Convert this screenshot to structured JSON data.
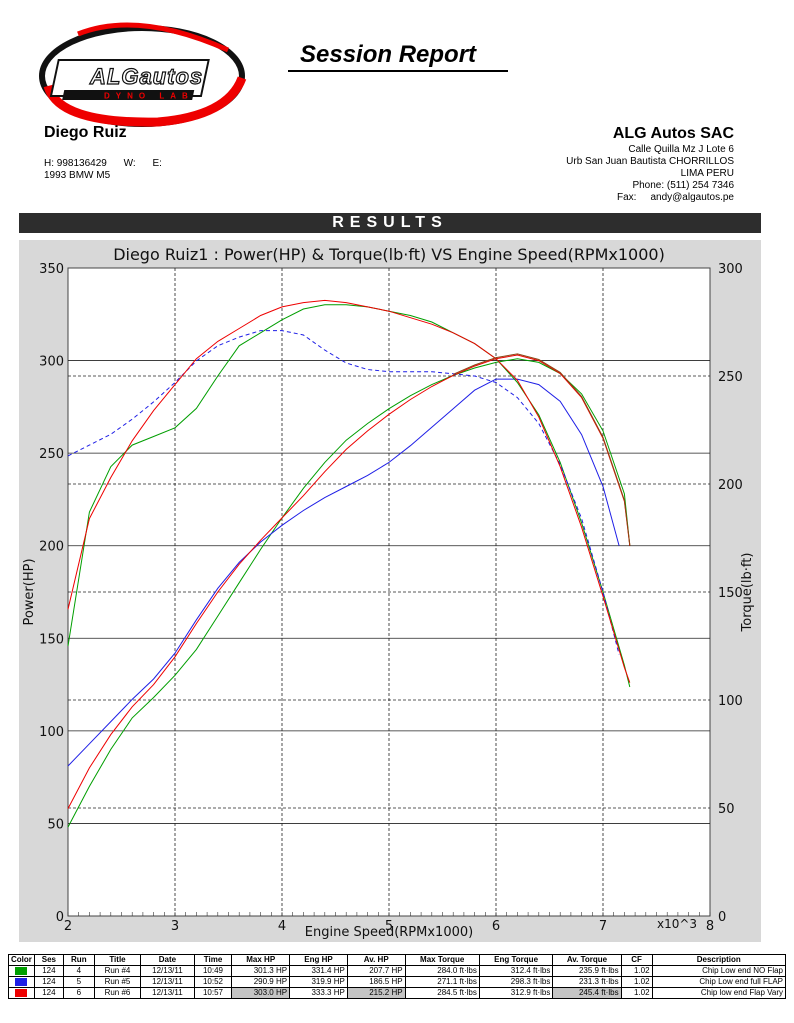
{
  "header": {
    "logo_text_main": "ALGautos",
    "logo_text_sub": "DYNO LAB",
    "report_title": "Session Report"
  },
  "customer": {
    "name": "Diego Ruiz",
    "phone_h": "H:  998136429",
    "phone_w": "W:",
    "phone_e": "E:",
    "car": "1993 BMW M5"
  },
  "company": {
    "name": "ALG Autos SAC",
    "address1": "Calle Quilla Mz J Lote 6",
    "address2": "Urb San Juan Bautista CHORRILLOS",
    "address3": "LIMA PERU",
    "phone": "Phone: (511) 254 7346",
    "fax_label": "Fax:",
    "fax_value": "andy@algautos.pe"
  },
  "results_label": "RESULTS",
  "colors": {
    "run4": "#009e00",
    "run5": "#1f1fe6",
    "run6": "#ee0000",
    "run6_torque_dark": "#8b4513"
  },
  "chart_data": {
    "type": "line",
    "title": "Diego Ruiz1 : Power(HP) & Torque(lb·ft) VS Engine Speed(RPMx1000)",
    "xlabel": "Engine Speed(RPMx1000)",
    "ylabel": "Power(HP)",
    "y2label": "Torque(lb·ft)",
    "x_multiplier_label": "x10^3",
    "xlim": [
      2,
      8
    ],
    "ylim": [
      0,
      350
    ],
    "y2lim": [
      0,
      300
    ],
    "x_ticks": [
      "2",
      "3",
      "4",
      "5",
      "6",
      "7",
      "8"
    ],
    "y_ticks": [
      "0",
      "50",
      "100",
      "150",
      "200",
      "250",
      "300",
      "350"
    ],
    "y2_ticks": [
      "0",
      "50",
      "100",
      "150",
      "200",
      "250",
      "300"
    ],
    "grid": true,
    "series": [
      {
        "name": "Run #4",
        "measure": "power",
        "axis": "left",
        "color": "#009e00",
        "dash": false,
        "x": [
          2.0,
          2.2,
          2.4,
          2.6,
          2.8,
          3.0,
          3.2,
          3.4,
          3.6,
          3.8,
          4.0,
          4.2,
          4.4,
          4.6,
          4.8,
          5.0,
          5.2,
          5.4,
          5.6,
          5.8,
          6.0,
          6.2,
          6.4,
          6.6,
          6.8,
          7.0,
          7.2,
          7.25
        ],
        "y": [
          48,
          70,
          90,
          107,
          118,
          130,
          144,
          162,
          180,
          198,
          215,
          231,
          245,
          257,
          266,
          274,
          281,
          287,
          292,
          296,
          299,
          301,
          299,
          293,
          282,
          262,
          228,
          200
        ]
      },
      {
        "name": "Run #5",
        "measure": "power",
        "axis": "left",
        "color": "#1f1fe6",
        "dash": false,
        "x": [
          2.0,
          2.2,
          2.4,
          2.6,
          2.8,
          3.0,
          3.2,
          3.4,
          3.6,
          3.8,
          4.0,
          4.2,
          4.4,
          4.6,
          4.8,
          5.0,
          5.2,
          5.4,
          5.6,
          5.8,
          6.0,
          6.2,
          6.4,
          6.6,
          6.8,
          7.0,
          7.15
        ],
        "y": [
          81,
          93,
          105,
          117,
          128,
          142,
          160,
          177,
          191,
          202,
          211,
          219,
          226,
          232,
          238,
          245,
          254,
          264,
          274,
          284,
          290,
          290,
          287,
          278,
          260,
          232,
          200
        ]
      },
      {
        "name": "Run #6",
        "measure": "power",
        "axis": "left",
        "color": "#ee0000",
        "dash": false,
        "x": [
          2.0,
          2.2,
          2.4,
          2.6,
          2.8,
          3.0,
          3.2,
          3.4,
          3.6,
          3.8,
          4.0,
          4.2,
          4.4,
          4.6,
          4.8,
          5.0,
          5.2,
          5.4,
          5.6,
          5.8,
          6.0,
          6.2,
          6.4,
          6.6,
          6.8,
          7.0,
          7.2,
          7.25
        ],
        "y": [
          58,
          80,
          98,
          113,
          125,
          140,
          158,
          175,
          190,
          203,
          215,
          227,
          240,
          252,
          262,
          271,
          279,
          286,
          292,
          297,
          301,
          303,
          300,
          293,
          280,
          258,
          224,
          200
        ]
      },
      {
        "name": "Run #4",
        "measure": "torque",
        "axis": "right",
        "color": "#009e00",
        "dash": false,
        "x": [
          2.0,
          2.2,
          2.4,
          2.6,
          2.8,
          3.0,
          3.2,
          3.4,
          3.6,
          3.8,
          4.0,
          4.2,
          4.4,
          4.6,
          4.8,
          5.0,
          5.2,
          5.4,
          5.6,
          5.8,
          6.0,
          6.2,
          6.4,
          6.6,
          6.8,
          7.0,
          7.2,
          7.25
        ],
        "y": [
          125,
          187,
          208,
          218,
          222,
          226,
          235,
          250,
          264,
          270,
          276,
          281,
          283,
          283,
          282,
          280,
          278,
          275,
          270,
          265,
          258,
          247,
          232,
          210,
          182,
          150,
          116,
          106
        ]
      },
      {
        "name": "Run #5",
        "measure": "torque",
        "axis": "right",
        "color": "#1f1fe6",
        "dash": true,
        "x": [
          2.0,
          2.2,
          2.4,
          2.6,
          2.8,
          3.0,
          3.2,
          3.4,
          3.6,
          3.8,
          4.0,
          4.2,
          4.4,
          4.6,
          4.8,
          5.0,
          5.2,
          5.4,
          5.6,
          5.8,
          6.0,
          6.2,
          6.4,
          6.6,
          6.8,
          7.0,
          7.15
        ],
        "y": [
          213,
          218,
          223,
          230,
          238,
          247,
          257,
          264,
          268,
          271,
          271,
          269,
          262,
          256,
          253,
          252,
          252,
          252,
          251,
          250,
          247,
          240,
          228,
          209,
          184,
          150,
          121
        ]
      },
      {
        "name": "Run #6",
        "measure": "torque",
        "axis": "right",
        "color": "#ee0000",
        "dash": false,
        "x": [
          2.0,
          2.2,
          2.4,
          2.6,
          2.8,
          3.0,
          3.2,
          3.4,
          3.6,
          3.8,
          4.0,
          4.2,
          4.4,
          4.6,
          4.8,
          5.0,
          5.2,
          5.4,
          5.6,
          5.8,
          6.0,
          6.2,
          6.4,
          6.6,
          6.8,
          7.0,
          7.2,
          7.25
        ],
        "y": [
          142,
          184,
          203,
          220,
          234,
          246,
          258,
          266,
          272,
          278,
          282,
          284,
          285,
          284,
          282,
          280,
          277,
          274,
          270,
          265,
          258,
          248,
          231,
          208,
          180,
          148,
          115,
          108
        ]
      }
    ]
  },
  "table": {
    "headers": [
      "Color",
      "Ses",
      "Run",
      "Title",
      "Date",
      "Time",
      "Max HP",
      "Eng HP",
      "Av. HP",
      "Max Torque",
      "Eng Torque",
      "Av. Torque",
      "CF",
      "Description"
    ],
    "rows": [
      {
        "color": "#009e00",
        "ses": "124",
        "run": "4",
        "title": "Run #4",
        "date": "12/13/11",
        "time": "10:49",
        "max_hp": "301.3 HP",
        "eng_hp": "331.4 HP",
        "av_hp": "207.7 HP",
        "max_tq": "284.0 ft·lbs",
        "eng_tq": "312.4 ft·lbs",
        "av_tq": "235.9 ft·lbs",
        "cf": "1.02",
        "desc": "Chip Low end NO Flap"
      },
      {
        "color": "#1f1fe6",
        "ses": "124",
        "run": "5",
        "title": "Run #5",
        "date": "12/13/11",
        "time": "10:52",
        "max_hp": "290.9 HP",
        "eng_hp": "319.9 HP",
        "av_hp": "186.5 HP",
        "max_tq": "271.1 ft·lbs",
        "eng_tq": "298.3 ft·lbs",
        "av_tq": "231.3 ft·lbs",
        "cf": "1.02",
        "desc": "Chip Low end full FLAP"
      },
      {
        "color": "#ee0000",
        "ses": "124",
        "run": "6",
        "title": "Run #6",
        "date": "12/13/11",
        "time": "10:57",
        "max_hp": "303.0 HP",
        "eng_hp": "333.3 HP",
        "av_hp": "215.2 HP",
        "max_tq": "284.5 ft·lbs",
        "eng_tq": "312.9 ft·lbs",
        "av_tq": "245.4 ft·lbs",
        "cf": "1.02",
        "desc": "Chip low end Flap Vary"
      }
    ]
  }
}
